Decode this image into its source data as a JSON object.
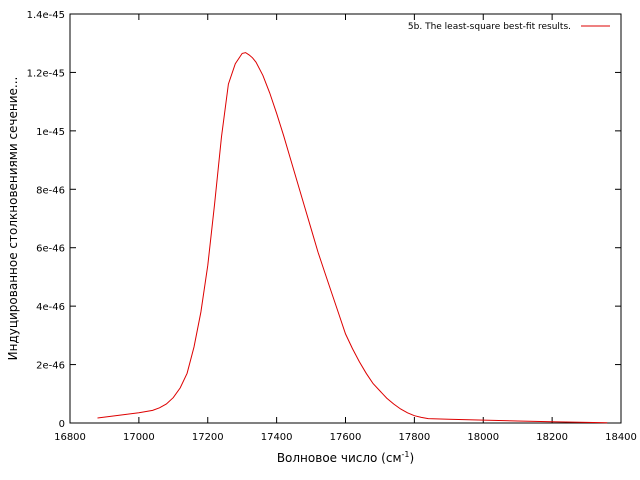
{
  "chart_data": {
    "type": "line",
    "xlabel_base": "Волновое число (см",
    "xlabel_sup": "-1",
    "xlabel_end": ")",
    "ylabel": "Индуцированное столкновениями сечение...",
    "xlim": [
      16800,
      18400
    ],
    "ylim": [
      0,
      1.4e-45
    ],
    "x_ticks": [
      {
        "value": 16800,
        "label": "16800"
      },
      {
        "value": 17000,
        "label": "17000"
      },
      {
        "value": 17200,
        "label": "17200"
      },
      {
        "value": 17400,
        "label": "17400"
      },
      {
        "value": 17600,
        "label": "17600"
      },
      {
        "value": 17800,
        "label": "17800"
      },
      {
        "value": 18000,
        "label": "18000"
      },
      {
        "value": 18200,
        "label": "18200"
      },
      {
        "value": 18400,
        "label": "18400"
      }
    ],
    "y_ticks": [
      {
        "value": 0,
        "label": "0"
      },
      {
        "value": 2e-46,
        "label": "2e-46"
      },
      {
        "value": 4e-46,
        "label": "4e-46"
      },
      {
        "value": 6e-46,
        "label": "6e-46"
      },
      {
        "value": 8e-46,
        "label": "8e-46"
      },
      {
        "value": 1e-45,
        "label": "1e-45"
      },
      {
        "value": 1.2e-45,
        "label": "1.2e-45"
      },
      {
        "value": 1.4e-45,
        "label": "1.4e-45"
      }
    ],
    "grid": false,
    "legend_position": "top-right",
    "series": [
      {
        "name": "5b. The least-square best-fit results.",
        "color": "#dd0000",
        "x": [
          16880,
          16920,
          16960,
          17000,
          17040,
          17060,
          17080,
          17100,
          17120,
          17140,
          17160,
          17180,
          17200,
          17220,
          17240,
          17260,
          17280,
          17300,
          17310,
          17320,
          17330,
          17340,
          17360,
          17380,
          17400,
          17420,
          17440,
          17460,
          17480,
          17500,
          17520,
          17540,
          17560,
          17580,
          17600,
          17620,
          17640,
          17660,
          17680,
          17700,
          17720,
          17740,
          17760,
          17780,
          17800,
          17820,
          17840,
          17900,
          18000,
          18100,
          18200,
          18300,
          18360
        ],
        "y": [
          1.7e-47,
          2.3e-47,
          2.9e-47,
          3.5e-47,
          4.3e-47,
          5.2e-47,
          6.5e-47,
          8.7e-47,
          1.2e-46,
          1.7e-46,
          2.6e-46,
          3.8e-46,
          5.4e-46,
          7.5e-46,
          9.8e-46,
          1.16e-45,
          1.23e-45,
          1.265e-45,
          1.268e-45,
          1.26e-45,
          1.25e-45,
          1.235e-45,
          1.19e-45,
          1.13e-45,
          1.06e-45,
          9.85e-46,
          9.05e-46,
          8.25e-46,
          7.45e-46,
          6.65e-46,
          5.85e-46,
          5.15e-46,
          4.45e-46,
          3.75e-46,
          3.05e-46,
          2.55e-46,
          2.1e-46,
          1.7e-46,
          1.35e-46,
          1.1e-46,
          8.5e-47,
          6.5e-47,
          4.8e-47,
          3.5e-47,
          2.5e-47,
          1.9e-47,
          1.5e-47,
          1.3e-47,
          1e-47,
          7e-48,
          4e-48,
          2e-48,
          1e-48
        ]
      }
    ]
  }
}
